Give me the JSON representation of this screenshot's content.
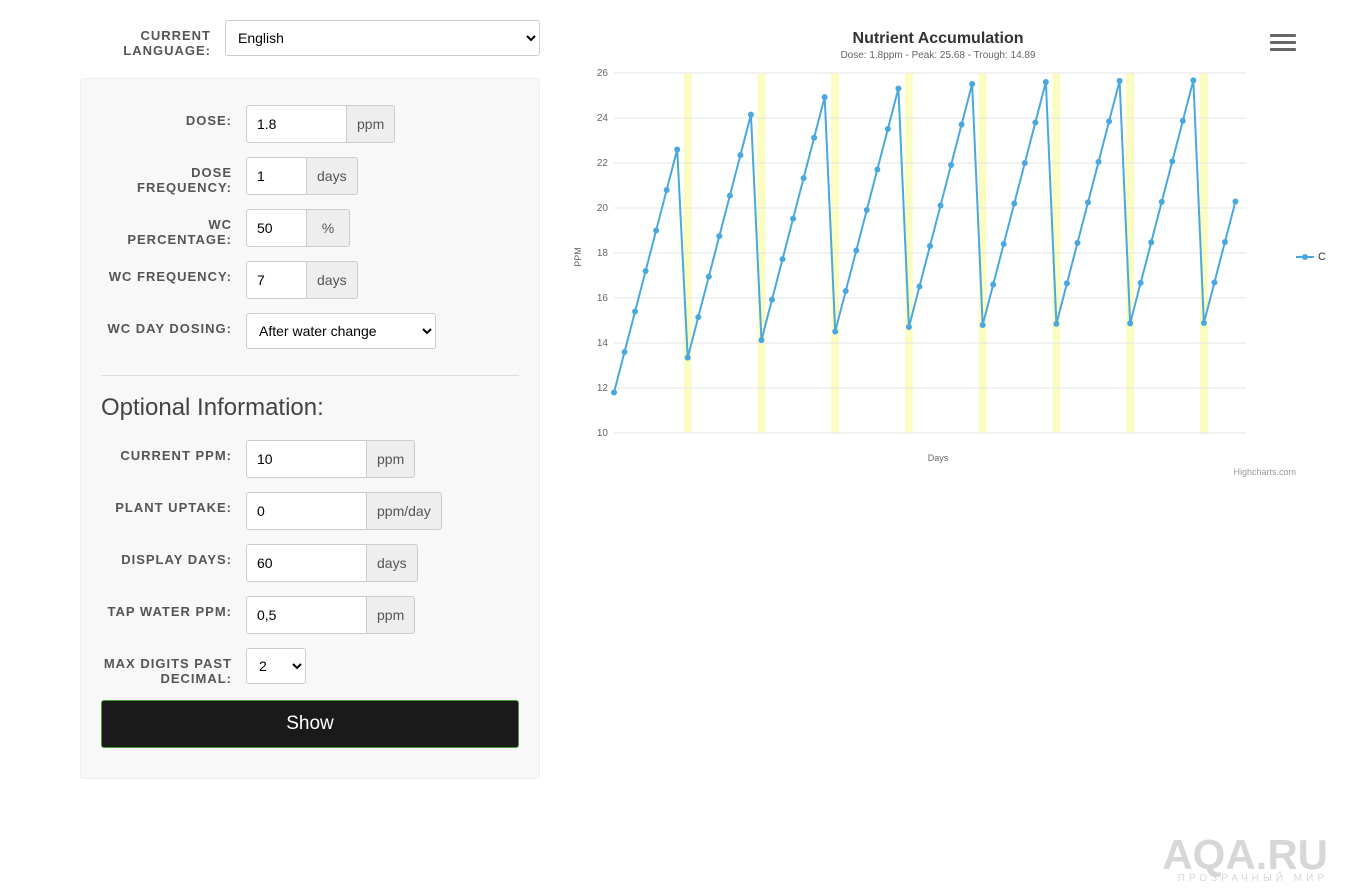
{
  "language": {
    "label": "CURRENT LANGUAGE:",
    "value": "English",
    "options": [
      "English"
    ]
  },
  "form": {
    "dose": {
      "label": "DOSE:",
      "value": "1.8",
      "unit": "ppm"
    },
    "dose_freq": {
      "label": "DOSE FREQUENCY:",
      "value": "1",
      "unit": "days"
    },
    "wc_pct": {
      "label": "WC PERCENTAGE:",
      "value": "50",
      "unit": "%"
    },
    "wc_freq": {
      "label": "WC FREQUENCY:",
      "value": "7",
      "unit": "days"
    },
    "wc_day_dosing": {
      "label": "WC DAY DOSING:",
      "value": "After water change",
      "options": [
        "After water change"
      ]
    },
    "section_title": "Optional Information:",
    "current_ppm": {
      "label": "CURRENT PPM:",
      "value": "10",
      "unit": "ppm"
    },
    "plant_uptake": {
      "label": "PLANT UPTAKE:",
      "value": "0",
      "unit": "ppm/day"
    },
    "display_days": {
      "label": "DISPLAY DAYS:",
      "value": "60",
      "unit": "days"
    },
    "tap_water_ppm": {
      "label": "TAP WATER PPM:",
      "value": "0,5",
      "unit": "ppm"
    },
    "max_digits": {
      "label": "MAX DIGITS PAST DECIMAL:",
      "value": "2",
      "options": [
        "2"
      ]
    },
    "show_button": "Show"
  },
  "chart": {
    "type": "line",
    "title": "Nutrient Accumulation",
    "subtitle": "Dose: 1.8ppm - Peak: 25.68 - Trough: 14.89",
    "x_label": "Days",
    "y_label": "PPM",
    "legend_label": "C",
    "credits": "Highcharts.com",
    "series_color": "#4aa8e0",
    "wc_band_color": "#fafcc2",
    "grid_color": "#e6e6e6",
    "background_color": "#ffffff",
    "marker": "circle",
    "marker_radius": 3,
    "line_width": 2,
    "ylim": [
      10,
      26
    ],
    "ytick_step": 2,
    "xlim": [
      0,
      60
    ],
    "wc_days": [
      7,
      14,
      21,
      28,
      35,
      42,
      49,
      56
    ],
    "data": [
      11.8,
      13.6,
      15.4,
      17.2,
      19.0,
      20.8,
      22.6,
      13.35,
      15.15,
      16.95,
      18.75,
      20.55,
      22.35,
      24.15,
      14.13,
      15.93,
      17.73,
      19.53,
      21.33,
      23.13,
      24.93,
      14.51,
      16.31,
      18.11,
      19.91,
      21.71,
      23.51,
      25.31,
      14.71,
      16.51,
      18.31,
      20.11,
      21.91,
      23.71,
      25.51,
      14.8,
      16.6,
      18.4,
      20.2,
      22.0,
      23.8,
      25.6,
      14.85,
      16.65,
      18.45,
      20.25,
      22.05,
      23.85,
      25.65,
      14.87,
      16.67,
      18.47,
      20.27,
      22.07,
      23.87,
      25.67,
      14.89,
      16.69,
      18.49,
      20.29
    ]
  },
  "watermark": {
    "big": "AQA.RU",
    "small": "ПРОЗРАЧНЫЙ МИР"
  }
}
